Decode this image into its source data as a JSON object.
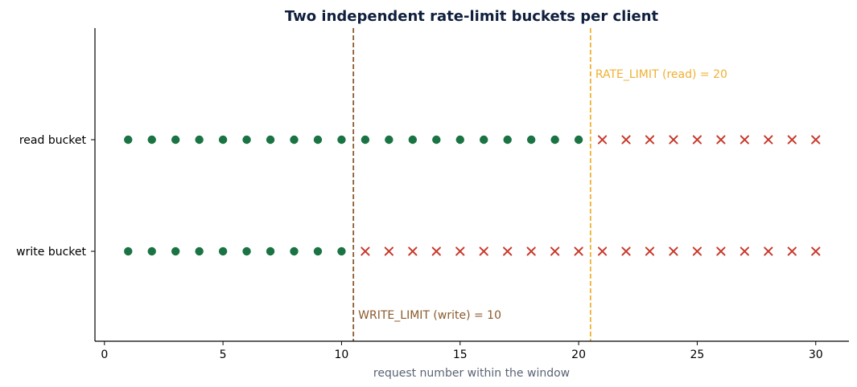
{
  "chart_data": {
    "type": "scatter",
    "title": "Two independent rate-limit buckets per client",
    "xlabel": "request number within the window",
    "ylabel": "",
    "xlim": [
      -0.4,
      31.4
    ],
    "xticks": [
      0,
      5,
      10,
      15,
      20,
      25,
      30
    ],
    "categories": [
      "read bucket",
      "write bucket"
    ],
    "x": [
      1,
      2,
      3,
      4,
      5,
      6,
      7,
      8,
      9,
      10,
      11,
      12,
      13,
      14,
      15,
      16,
      17,
      18,
      19,
      20,
      21,
      22,
      23,
      24,
      25,
      26,
      27,
      28,
      29,
      30
    ],
    "buckets": [
      {
        "category": "read bucket",
        "allowed_up_to": 20
      },
      {
        "category": "write bucket",
        "allowed_up_to": 10
      }
    ],
    "thresholds": [
      {
        "x": 10.5,
        "label": "WRITE_LIMIT (write) = 10",
        "color": "#8b5a2b",
        "label_position": "bottom"
      },
      {
        "x": 20.5,
        "label": "RATE_LIMIT (read) = 20",
        "color": "#f0b030",
        "label_position": "top"
      }
    ],
    "allowed_marker": "circle",
    "rejected_marker": "x",
    "grid": false,
    "legend": "none"
  },
  "colors": {
    "allowed": "#1a7342",
    "rejected": "#c8382a",
    "title": "#0f1f3d",
    "xlabel": "#5a6474",
    "axis": "#000000"
  }
}
